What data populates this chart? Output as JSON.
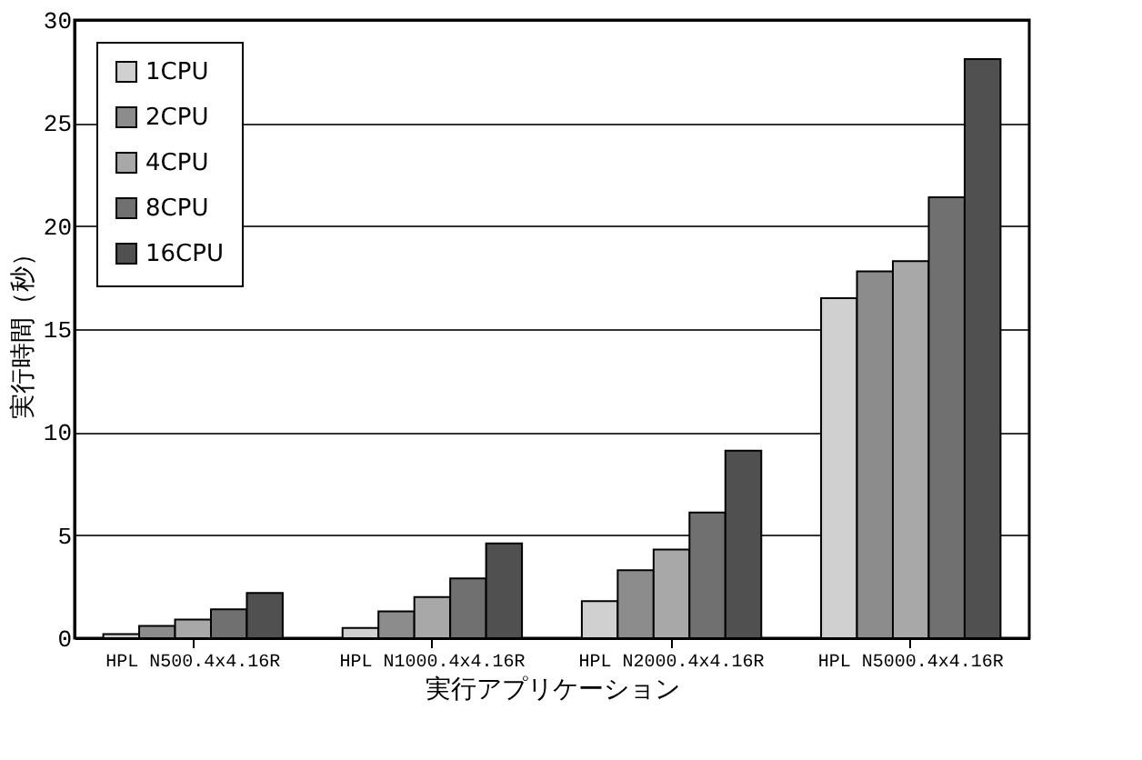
{
  "chart_data": {
    "type": "bar",
    "xlabel": "実行アプリケーション",
    "ylabel": "実行時間（秒）",
    "categories": [
      "HPL N500.4x4.16R",
      "HPL N1000.4x4.16R",
      "HPL N2000.4x4.16R",
      "HPL N5000.4x4.16R"
    ],
    "series": [
      {
        "name": "1CPU",
        "color": "#d0d0d0",
        "values": [
          0.2,
          0.5,
          1.8,
          16.5
        ]
      },
      {
        "name": "2CPU",
        "color": "#8c8c8c",
        "values": [
          0.6,
          1.3,
          3.3,
          17.8
        ]
      },
      {
        "name": "4CPU",
        "color": "#a8a8a8",
        "values": [
          0.9,
          2.0,
          4.3,
          18.3
        ]
      },
      {
        "name": "8CPU",
        "color": "#707070",
        "values": [
          1.4,
          2.9,
          6.1,
          21.4
        ]
      },
      {
        "name": "16CPU",
        "color": "#505050",
        "values": [
          2.2,
          4.6,
          9.1,
          28.1
        ]
      }
    ],
    "ylim": [
      0,
      30
    ],
    "yticks": [
      0,
      5,
      10,
      15,
      20,
      25,
      30
    ],
    "grid": "y",
    "legend": "top left"
  }
}
